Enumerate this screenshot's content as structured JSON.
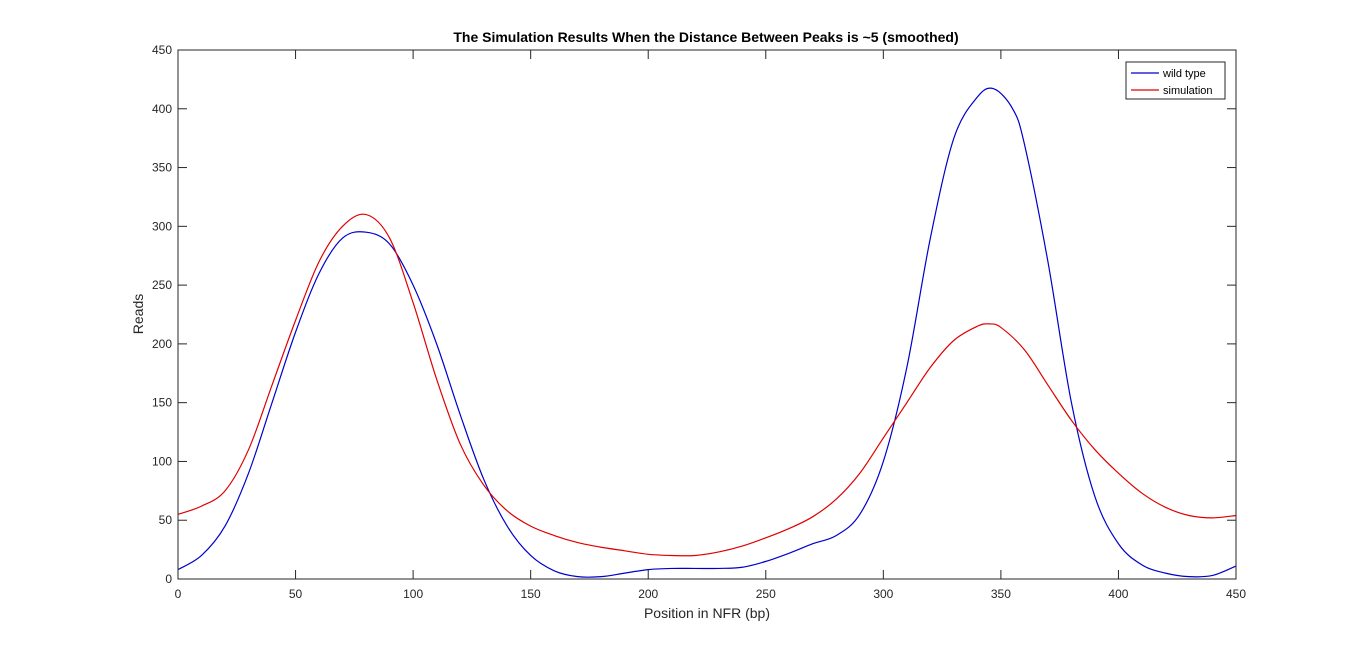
{
  "chart_data": {
    "type": "line",
    "title": "The Simulation Results When the Distance Between Peaks is ~5 (smoothed)",
    "xlabel": "Position in NFR (bp)",
    "ylabel": "Reads",
    "xlim": [
      0,
      450
    ],
    "ylim": [
      0,
      450
    ],
    "xticks": [
      0,
      50,
      100,
      150,
      200,
      250,
      300,
      350,
      400,
      450
    ],
    "yticks": [
      0,
      50,
      100,
      150,
      200,
      250,
      300,
      350,
      400,
      450
    ],
    "grid": false,
    "legend_position": "top-right",
    "series": [
      {
        "name": "wild type",
        "color": "#0000cc",
        "x": [
          0,
          10,
          20,
          30,
          40,
          50,
          60,
          70,
          80,
          90,
          100,
          110,
          120,
          130,
          140,
          150,
          160,
          170,
          180,
          190,
          200,
          210,
          220,
          230,
          240,
          250,
          260,
          270,
          280,
          290,
          300,
          310,
          320,
          330,
          340,
          347,
          355,
          360,
          370,
          380,
          390,
          400,
          410,
          420,
          430,
          440,
          450
        ],
        "y": [
          8,
          20,
          45,
          90,
          150,
          210,
          260,
          290,
          295,
          285,
          250,
          200,
          140,
          85,
          45,
          20,
          7,
          2,
          2,
          5,
          8,
          9,
          9,
          9,
          10,
          15,
          22,
          30,
          37,
          55,
          100,
          180,
          290,
          375,
          410,
          417,
          400,
          370,
          270,
          150,
          70,
          30,
          12,
          5,
          2,
          3,
          11
        ]
      },
      {
        "name": "simulation",
        "color": "#e00000",
        "x": [
          0,
          10,
          20,
          30,
          40,
          50,
          60,
          70,
          80,
          90,
          100,
          110,
          120,
          130,
          140,
          150,
          160,
          170,
          180,
          190,
          200,
          210,
          220,
          230,
          240,
          250,
          260,
          270,
          280,
          290,
          300,
          310,
          320,
          330,
          340,
          345,
          350,
          360,
          370,
          380,
          390,
          400,
          410,
          420,
          430,
          440,
          450
        ],
        "y": [
          55,
          62,
          75,
          110,
          165,
          220,
          270,
          300,
          310,
          290,
          235,
          170,
          115,
          80,
          58,
          45,
          37,
          31,
          27,
          24,
          21,
          20,
          20,
          23,
          28,
          35,
          43,
          53,
          68,
          90,
          120,
          150,
          180,
          203,
          215,
          217,
          214,
          195,
          165,
          135,
          110,
          90,
          73,
          61,
          54,
          52,
          54
        ]
      }
    ]
  }
}
